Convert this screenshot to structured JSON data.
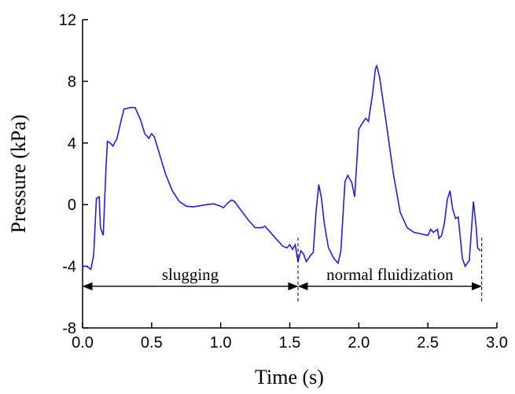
{
  "chart_data": {
    "type": "line",
    "xlabel": "Time (s)",
    "ylabel": "Pressure (kPa)",
    "x": [
      0.0,
      0.03,
      0.06,
      0.08,
      0.1,
      0.12,
      0.13,
      0.15,
      0.17,
      0.18,
      0.2,
      0.22,
      0.25,
      0.28,
      0.3,
      0.35,
      0.38,
      0.42,
      0.45,
      0.48,
      0.5,
      0.52,
      0.55,
      0.6,
      0.65,
      0.7,
      0.75,
      0.8,
      0.9,
      0.95,
      1.0,
      1.02,
      1.05,
      1.08,
      1.1,
      1.15,
      1.2,
      1.25,
      1.3,
      1.32,
      1.35,
      1.4,
      1.45,
      1.48,
      1.5,
      1.52,
      1.54,
      1.56,
      1.58,
      1.6,
      1.62,
      1.65,
      1.67,
      1.69,
      1.71,
      1.73,
      1.75,
      1.78,
      1.82,
      1.85,
      1.87,
      1.9,
      1.92,
      1.95,
      1.97,
      2.0,
      2.02,
      2.05,
      2.07,
      2.1,
      2.12,
      2.13,
      2.15,
      2.2,
      2.25,
      2.3,
      2.35,
      2.4,
      2.45,
      2.5,
      2.52,
      2.54,
      2.57,
      2.58,
      2.6,
      2.62,
      2.64,
      2.66,
      2.68,
      2.7,
      2.72,
      2.75,
      2.77,
      2.8,
      2.83,
      2.85,
      2.86,
      2.88
    ],
    "series": [
      {
        "color": "#1f1fe0",
        "values": [
          -4.0,
          -4.0,
          -4.2,
          -3.3,
          0.4,
          0.5,
          -1.5,
          -2.0,
          2.5,
          4.1,
          4.0,
          3.8,
          4.3,
          5.5,
          6.2,
          6.3,
          6.3,
          5.5,
          4.6,
          4.3,
          4.6,
          4.4,
          3.5,
          2.0,
          0.9,
          0.2,
          -0.1,
          -0.15,
          0,
          0.05,
          -0.1,
          -0.2,
          0.1,
          0.3,
          0.2,
          -0.4,
          -1.0,
          -1.5,
          -1.5,
          -1.4,
          -1.7,
          -2.2,
          -2.7,
          -2.8,
          -2.6,
          -2.9,
          -2.6,
          -3.7,
          -3.0,
          -3.2,
          -3.7,
          -3.3,
          -3.1,
          -0.5,
          1.3,
          0.4,
          -1.2,
          -2.8,
          -3.5,
          -3.8,
          -3.0,
          1.5,
          1.9,
          1.4,
          0.5,
          4.9,
          5.2,
          5.6,
          5.4,
          7.2,
          8.8,
          9.0,
          8.3,
          5.2,
          2.0,
          -0.5,
          -1.5,
          -1.8,
          -1.9,
          -2.0,
          -1.6,
          -1.8,
          -1.6,
          -2.2,
          -2.0,
          -1.2,
          0.3,
          0.9,
          -0.3,
          -0.9,
          -0.8,
          -3.5,
          -4.0,
          -3.6,
          0.2,
          -1.5,
          -2.8,
          -3.0
        ]
      }
    ],
    "xlim": [
      0,
      3
    ],
    "ylim": [
      -8,
      12
    ],
    "xticks": [
      {
        "value": 0,
        "label": "0.0"
      },
      {
        "value": 0.5,
        "label": "0.5"
      },
      {
        "value": 1,
        "label": "1.0"
      },
      {
        "value": 1.5,
        "label": "1.5"
      },
      {
        "value": 2,
        "label": "2.0"
      },
      {
        "value": 2.5,
        "label": "2.5"
      },
      {
        "value": 3,
        "label": "3.0"
      }
    ],
    "yticks": [
      -8,
      -4,
      0,
      4,
      8,
      12
    ],
    "annotations": [
      {
        "text": "slugging",
        "x": [
          0,
          1.56
        ],
        "y": -5.3
      },
      {
        "text": "normal fluidization",
        "x": [
          1.56,
          2.89
        ],
        "y": -5.3
      }
    ]
  }
}
